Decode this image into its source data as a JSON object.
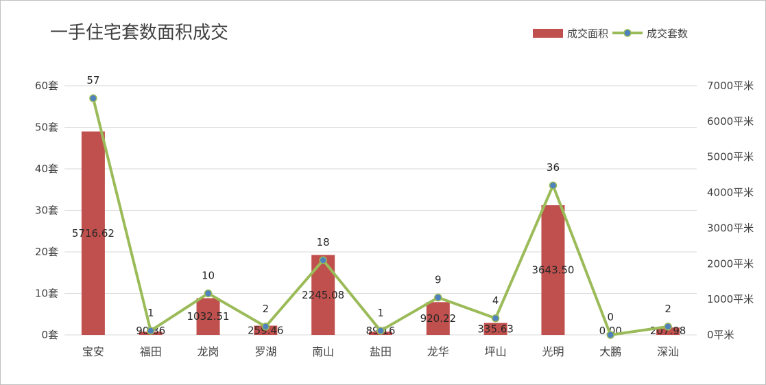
{
  "colors": {
    "bar": "#c0504d",
    "line": "#9bbb59",
    "marker": "#4f81bd",
    "grid": "#d9d9d9",
    "text": "#404040",
    "label": "#262626"
  },
  "chart_data": {
    "type": "bar",
    "title": "一手住宅套数面积成交",
    "categories": [
      "宝安",
      "福田",
      "龙岗",
      "罗湖",
      "南山",
      "盐田",
      "龙华",
      "坪山",
      "光明",
      "大鹏",
      "深汕"
    ],
    "series": [
      {
        "name": "成交面积",
        "type": "bar",
        "axis": "right",
        "values": [
          5716.62,
          90.36,
          1032.51,
          259.46,
          2245.08,
          89.16,
          920.22,
          335.63,
          3643.5,
          0.0,
          207.98
        ],
        "labels": [
          "5716.62",
          "90.36",
          "1032.51",
          "259.46",
          "2245.08",
          "89.16",
          "920.22",
          "335.63",
          "3643.50",
          "0.00",
          "207.98"
        ]
      },
      {
        "name": "成交套数",
        "type": "line",
        "axis": "left",
        "values": [
          57,
          1,
          10,
          2,
          18,
          1,
          9,
          4,
          36,
          0,
          2
        ],
        "labels": [
          "57",
          "1",
          "10",
          "2",
          "18",
          "1",
          "9",
          "4",
          "36",
          "0",
          "2"
        ]
      }
    ],
    "y_left": {
      "ylim": [
        0,
        60
      ],
      "ticks": [
        "0套",
        "10套",
        "20套",
        "30套",
        "40套",
        "50套",
        "60套"
      ]
    },
    "y_right": {
      "ylim": [
        0,
        7000
      ],
      "ticks": [
        "0平米",
        "1000平米",
        "2000平米",
        "3000平米",
        "4000平米",
        "5000平米",
        "6000平米",
        "7000平米"
      ]
    },
    "grid": true,
    "legend": "top-right"
  }
}
